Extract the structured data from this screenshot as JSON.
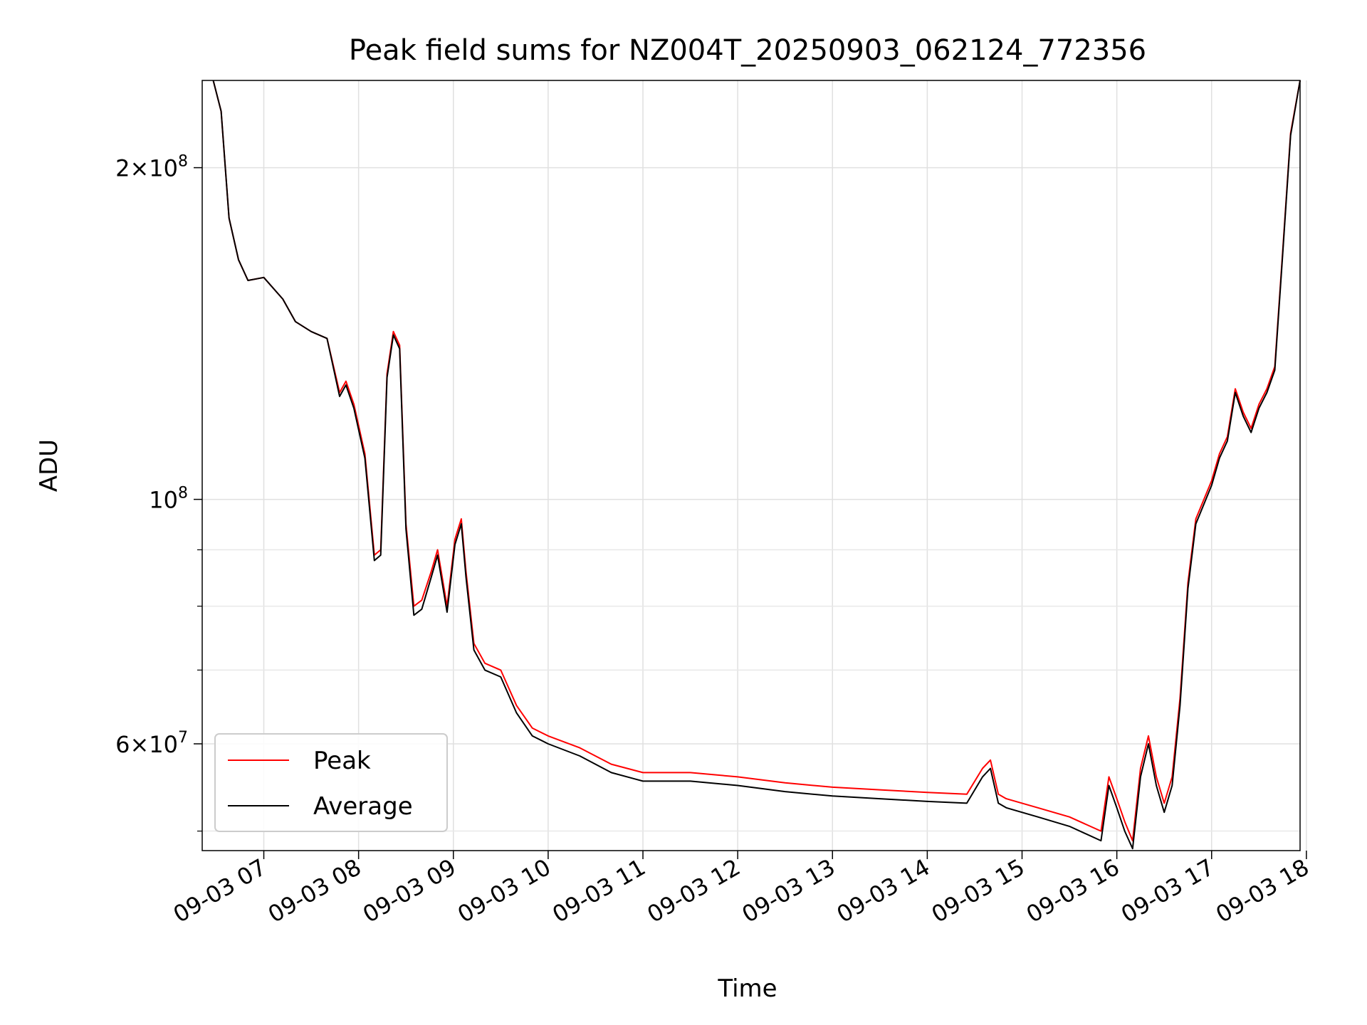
{
  "chart_data": {
    "type": "line",
    "title": "Peak field sums for NZ004T_20250903_062124_772356",
    "xlabel": "Time",
    "ylabel": "ADU",
    "yscale": "log",
    "xlim": [
      "2025-09-03T06:21",
      "2025-09-03T17:56"
    ],
    "ylim": [
      48000000,
      240000000
    ],
    "grid": true,
    "legend_position": "lower-left",
    "x_ticks": [
      "09-03 07",
      "09-03 08",
      "09-03 09",
      "09-03 10",
      "09-03 11",
      "09-03 12",
      "09-03 13",
      "09-03 14",
      "09-03 15",
      "09-03 16",
      "09-03 17",
      "09-03 18"
    ],
    "y_major_ticks": [
      {
        "value": 60000000,
        "mantissa": "6",
        "exponent": "7"
      },
      {
        "value": 100000000,
        "mantissa": "",
        "exponent": "8"
      },
      {
        "value": 200000000,
        "mantissa": "2",
        "exponent": "8"
      }
    ],
    "y_minor_ticks": [
      50000000,
      70000000,
      80000000,
      90000000
    ],
    "series": [
      {
        "name": "Peak",
        "color": "#ff0000",
        "x": [
          "2025-09-03T06:28",
          "2025-09-03T06:33",
          "2025-09-03T06:38",
          "2025-09-03T06:44",
          "2025-09-03T06:50",
          "2025-09-03T07:00",
          "2025-09-03T07:12",
          "2025-09-03T07:20",
          "2025-09-03T07:30",
          "2025-09-03T07:40",
          "2025-09-03T07:48",
          "2025-09-03T07:52",
          "2025-09-03T07:57",
          "2025-09-03T08:04",
          "2025-09-03T08:10",
          "2025-09-03T08:14",
          "2025-09-03T08:18",
          "2025-09-03T08:22",
          "2025-09-03T08:26",
          "2025-09-03T08:30",
          "2025-09-03T08:35",
          "2025-09-03T08:40",
          "2025-09-03T08:46",
          "2025-09-03T08:50",
          "2025-09-03T08:56",
          "2025-09-03T09:01",
          "2025-09-03T09:05",
          "2025-09-03T09:08",
          "2025-09-03T09:13",
          "2025-09-03T09:20",
          "2025-09-03T09:30",
          "2025-09-03T09:40",
          "2025-09-03T09:50",
          "2025-09-03T10:00",
          "2025-09-03T10:20",
          "2025-09-03T10:40",
          "2025-09-03T11:00",
          "2025-09-03T11:30",
          "2025-09-03T12:00",
          "2025-09-03T12:30",
          "2025-09-03T13:00",
          "2025-09-03T13:30",
          "2025-09-03T14:00",
          "2025-09-03T14:25",
          "2025-09-03T14:35",
          "2025-09-03T14:40",
          "2025-09-03T14:45",
          "2025-09-03T14:50",
          "2025-09-03T15:10",
          "2025-09-03T15:30",
          "2025-09-03T15:50",
          "2025-09-03T15:55",
          "2025-09-03T16:00",
          "2025-09-03T16:05",
          "2025-09-03T16:10",
          "2025-09-03T16:15",
          "2025-09-03T16:20",
          "2025-09-03T16:25",
          "2025-09-03T16:30",
          "2025-09-03T16:35",
          "2025-09-03T16:40",
          "2025-09-03T16:45",
          "2025-09-03T16:50",
          "2025-09-03T17:00",
          "2025-09-03T17:05",
          "2025-09-03T17:10",
          "2025-09-03T17:15",
          "2025-09-03T17:20",
          "2025-09-03T17:25",
          "2025-09-03T17:30",
          "2025-09-03T17:35",
          "2025-09-03T17:40",
          "2025-09-03T17:45",
          "2025-09-03T17:50",
          "2025-09-03T17:56"
        ],
        "values": [
          240000000,
          225000000,
          180000000,
          165000000,
          158000000,
          159000000,
          152000000,
          145000000,
          142000000,
          140000000,
          125000000,
          128000000,
          122000000,
          110000000,
          89000000,
          90000000,
          130000000,
          142000000,
          138000000,
          95000000,
          80000000,
          81000000,
          86000000,
          90000000,
          80000000,
          92000000,
          96000000,
          86000000,
          74000000,
          71000000,
          70000000,
          65000000,
          62000000,
          61000000,
          59500000,
          57500000,
          56500000,
          56500000,
          56000000,
          55300000,
          54800000,
          54500000,
          54200000,
          54000000,
          57000000,
          58000000,
          54000000,
          53500000,
          52500000,
          51500000,
          50000000,
          56000000,
          53500000,
          51000000,
          49000000,
          57000000,
          61000000,
          56000000,
          53000000,
          56000000,
          66000000,
          84000000,
          96000000,
          104000000,
          110000000,
          114000000,
          126000000,
          120000000,
          116000000,
          122000000,
          126000000,
          132000000,
          168000000,
          215000000,
          240000000
        ]
      },
      {
        "name": "Average",
        "color": "#000000",
        "x": [
          "2025-09-03T06:28",
          "2025-09-03T06:33",
          "2025-09-03T06:38",
          "2025-09-03T06:44",
          "2025-09-03T06:50",
          "2025-09-03T07:00",
          "2025-09-03T07:12",
          "2025-09-03T07:20",
          "2025-09-03T07:30",
          "2025-09-03T07:40",
          "2025-09-03T07:48",
          "2025-09-03T07:52",
          "2025-09-03T07:57",
          "2025-09-03T08:04",
          "2025-09-03T08:10",
          "2025-09-03T08:14",
          "2025-09-03T08:18",
          "2025-09-03T08:22",
          "2025-09-03T08:26",
          "2025-09-03T08:30",
          "2025-09-03T08:35",
          "2025-09-03T08:40",
          "2025-09-03T08:46",
          "2025-09-03T08:50",
          "2025-09-03T08:56",
          "2025-09-03T09:01",
          "2025-09-03T09:05",
          "2025-09-03T09:08",
          "2025-09-03T09:13",
          "2025-09-03T09:20",
          "2025-09-03T09:30",
          "2025-09-03T09:40",
          "2025-09-03T09:50",
          "2025-09-03T10:00",
          "2025-09-03T10:20",
          "2025-09-03T10:40",
          "2025-09-03T11:00",
          "2025-09-03T11:30",
          "2025-09-03T12:00",
          "2025-09-03T12:30",
          "2025-09-03T13:00",
          "2025-09-03T13:30",
          "2025-09-03T14:00",
          "2025-09-03T14:25",
          "2025-09-03T14:35",
          "2025-09-03T14:40",
          "2025-09-03T14:45",
          "2025-09-03T14:50",
          "2025-09-03T15:10",
          "2025-09-03T15:30",
          "2025-09-03T15:50",
          "2025-09-03T15:55",
          "2025-09-03T16:00",
          "2025-09-03T16:05",
          "2025-09-03T16:10",
          "2025-09-03T16:15",
          "2025-09-03T16:20",
          "2025-09-03T16:25",
          "2025-09-03T16:30",
          "2025-09-03T16:35",
          "2025-09-03T16:40",
          "2025-09-03T16:45",
          "2025-09-03T16:50",
          "2025-09-03T17:00",
          "2025-09-03T17:05",
          "2025-09-03T17:10",
          "2025-09-03T17:15",
          "2025-09-03T17:20",
          "2025-09-03T17:25",
          "2025-09-03T17:30",
          "2025-09-03T17:35",
          "2025-09-03T17:40",
          "2025-09-03T17:45",
          "2025-09-03T17:50",
          "2025-09-03T17:56"
        ],
        "values": [
          240000000,
          225000000,
          180000000,
          165000000,
          158000000,
          159000000,
          152000000,
          145000000,
          142000000,
          140000000,
          124000000,
          127000000,
          121000000,
          109000000,
          88000000,
          89000000,
          129000000,
          141000000,
          137000000,
          94000000,
          78500000,
          79500000,
          85000000,
          89000000,
          79000000,
          91000000,
          95000000,
          85000000,
          73000000,
          70000000,
          69000000,
          64000000,
          61000000,
          60000000,
          58500000,
          56500000,
          55500000,
          55500000,
          55000000,
          54300000,
          53800000,
          53500000,
          53200000,
          53000000,
          56000000,
          57000000,
          53000000,
          52500000,
          51500000,
          50500000,
          49000000,
          55000000,
          52500000,
          50000000,
          48200000,
          56000000,
          60000000,
          55000000,
          52000000,
          55000000,
          65000000,
          83000000,
          95000000,
          103000000,
          109000000,
          113000000,
          125000000,
          119000000,
          115000000,
          121000000,
          125000000,
          131000000,
          167000000,
          214000000,
          240000000
        ]
      }
    ]
  }
}
